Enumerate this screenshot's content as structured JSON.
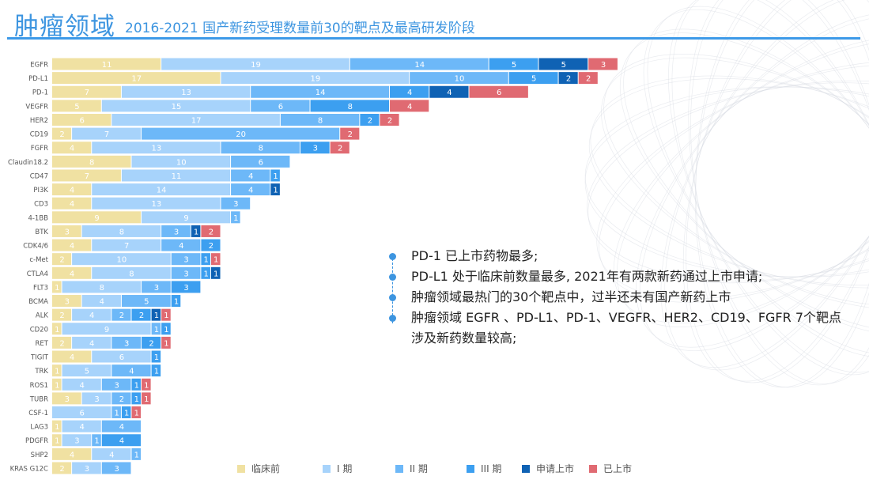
{
  "header": {
    "title": "肿瘤领域",
    "subtitle": "2016-2021 国产新药受理数量前30的靶点及最高研发阶段"
  },
  "notes": [
    "PD-1 已上市药物最多;",
    "PD-L1 处于临床前数量最多, 2021年有两款新药通过上市申请;",
    "肿瘤领域最热门的30个靶点中，过半还未有国产新药上市",
    "肿瘤领域 EGFR 、PD-L1、PD-1、VEGFR、HER2、CD19、FGFR 7个靶点涉及新药数量较高;"
  ],
  "colors": {
    "accent": "#3d95e0"
  },
  "chart_data": {
    "type": "bar",
    "orientation": "horizontal",
    "stacked": true,
    "legend_position": "bottom",
    "grid": false,
    "categories": [
      "EGFR",
      "PD-L1",
      "PD-1",
      "VEGFR",
      "HER2",
      "CD19",
      "FGFR",
      "Claudin18.2",
      "CD47",
      "PI3K",
      "CD3",
      "4-1BB",
      "BTK",
      "CDK4/6",
      "c-Met",
      "CTLA4",
      "FLT3",
      "BCMA",
      "ALK",
      "CD20",
      "RET",
      "TIGIT",
      "TRK",
      "ROS1",
      "TUBR",
      "CSF-1",
      "LAG3",
      "PDGFR",
      "SHP2",
      "KRAS G12C"
    ],
    "series": [
      {
        "name": "临床前",
        "color": "#f0e1a2",
        "values": [
          11,
          17,
          7,
          5,
          6,
          2,
          4,
          8,
          7,
          4,
          4,
          9,
          3,
          4,
          2,
          4,
          1,
          3,
          2,
          1,
          2,
          4,
          1,
          1,
          3,
          0,
          1,
          1,
          4,
          2
        ]
      },
      {
        "name": "I 期",
        "color": "#a7d3fb",
        "values": [
          19,
          19,
          13,
          15,
          17,
          7,
          13,
          10,
          11,
          14,
          13,
          9,
          8,
          7,
          10,
          8,
          8,
          4,
          4,
          9,
          4,
          6,
          5,
          4,
          3,
          6,
          4,
          3,
          4,
          3
        ]
      },
      {
        "name": "II 期",
        "color": "#6db8f8",
        "values": [
          14,
          10,
          14,
          6,
          8,
          20,
          8,
          6,
          4,
          4,
          3,
          1,
          3,
          4,
          3,
          3,
          3,
          5,
          2,
          1,
          3,
          0,
          4,
          3,
          2,
          1,
          4,
          1,
          1,
          3
        ]
      },
      {
        "name": "III 期",
        "color": "#3c9ff0",
        "values": [
          5,
          5,
          4,
          8,
          2,
          0,
          3,
          0,
          1,
          0,
          0,
          0,
          0,
          2,
          1,
          1,
          3,
          1,
          2,
          1,
          2,
          1,
          1,
          1,
          1,
          1,
          0,
          4,
          0,
          0
        ]
      },
      {
        "name": "申请上市",
        "color": "#0f62b4",
        "values": [
          5,
          2,
          4,
          0,
          0,
          0,
          0,
          0,
          0,
          1,
          0,
          0,
          1,
          0,
          0,
          1,
          0,
          0,
          1,
          0,
          0,
          0,
          0,
          0,
          0,
          0,
          0,
          0,
          0,
          0
        ]
      },
      {
        "name": "已上市",
        "color": "#e06a72",
        "values": [
          3,
          2,
          6,
          4,
          2,
          2,
          2,
          0,
          0,
          0,
          0,
          0,
          2,
          0,
          1,
          0,
          0,
          0,
          1,
          0,
          1,
          0,
          0,
          1,
          1,
          1,
          0,
          0,
          0,
          0
        ]
      }
    ]
  }
}
